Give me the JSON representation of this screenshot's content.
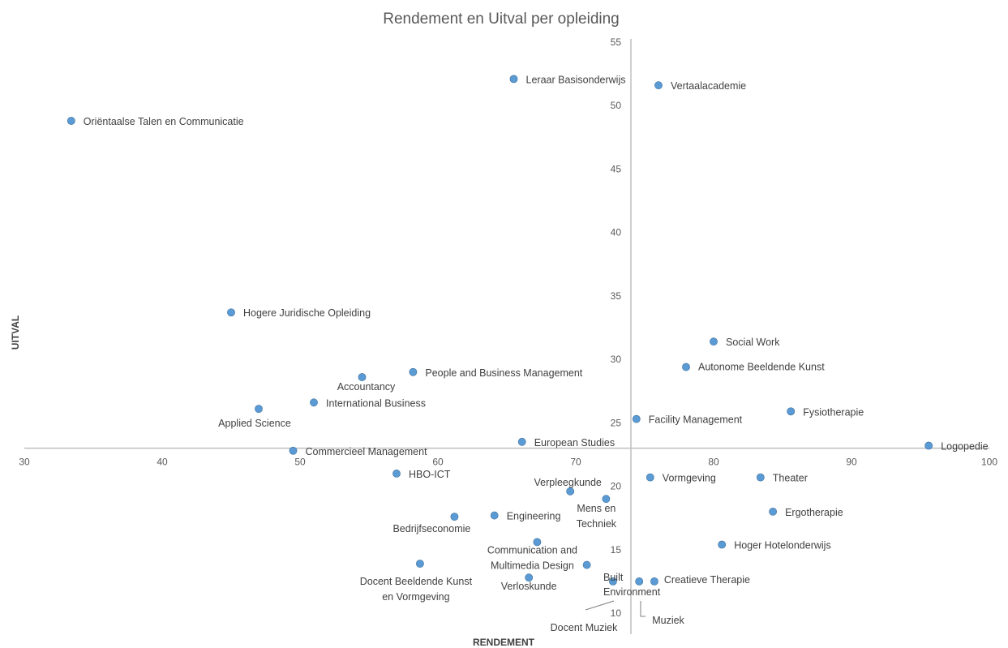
{
  "chart_data": {
    "type": "scatter",
    "title": "Rendement en Uitval per opleiding",
    "xlabel": "RENDEMENT",
    "ylabel": "UITVAL",
    "xlim": [
      30,
      100
    ],
    "ylim": [
      10,
      55
    ],
    "x_ticks": [
      30,
      40,
      50,
      60,
      70,
      80,
      90,
      100
    ],
    "y_ticks": [
      10,
      15,
      20,
      25,
      30,
      35,
      40,
      45,
      50,
      55
    ],
    "x_axis_crosses_y_at": 23,
    "y_axis_crosses_x_at": 74,
    "grid": false,
    "legend": "none",
    "point_color": "#5b9bd5",
    "points": [
      {
        "label": "Oriëntaalse Talen en Communicatie",
        "x": 33.4,
        "y": 48.8
      },
      {
        "label": "Leraar Basisonderwijs",
        "x": 65.5,
        "y": 52.1
      },
      {
        "label": "Vertaalacademie",
        "x": 76.0,
        "y": 51.6
      },
      {
        "label": "Hogere Juridische Opleiding",
        "x": 45.0,
        "y": 33.7
      },
      {
        "label": "Social Work",
        "x": 80.0,
        "y": 31.4
      },
      {
        "label": "Autonome Beeldende Kunst",
        "x": 78.0,
        "y": 29.4
      },
      {
        "label": "Accountancy",
        "x": 54.5,
        "y": 28.6
      },
      {
        "label": "People and Business Management",
        "x": 58.2,
        "y": 29.0
      },
      {
        "label": "International Business",
        "x": 51.0,
        "y": 26.6
      },
      {
        "label": "Applied Science",
        "x": 47.0,
        "y": 26.1
      },
      {
        "label": "Fysiotherapie",
        "x": 85.6,
        "y": 25.9
      },
      {
        "label": "Facility Management",
        "x": 74.4,
        "y": 25.3
      },
      {
        "label": "European Studies",
        "x": 66.1,
        "y": 23.5
      },
      {
        "label": "Logopedie",
        "x": 95.6,
        "y": 23.2
      },
      {
        "label": "Commercieel Management",
        "x": 49.5,
        "y": 22.8
      },
      {
        "label": "HBO-ICT",
        "x": 57.0,
        "y": 21.0
      },
      {
        "label": "Vormgeving",
        "x": 75.4,
        "y": 20.7
      },
      {
        "label": "Theater",
        "x": 83.4,
        "y": 20.7
      },
      {
        "label": "Verpleegkunde",
        "x": 69.6,
        "y": 19.6
      },
      {
        "label": "Mens en Techniek",
        "x": 72.2,
        "y": 19.0
      },
      {
        "label": "Ergotherapie",
        "x": 84.3,
        "y": 18.0
      },
      {
        "label": "Bedrijfseconomie",
        "x": 61.2,
        "y": 17.6
      },
      {
        "label": "Engineering",
        "x": 64.1,
        "y": 17.7
      },
      {
        "label": "Communication and Multimedia Design",
        "x": 67.2,
        "y": 15.6
      },
      {
        "label": "Hoger Hotelonderwijs",
        "x": 80.6,
        "y": 15.4
      },
      {
        "label": "Docent Beeldende Kunst en Vormgeving",
        "x": 58.7,
        "y": 13.9
      },
      {
        "label": "Built Environment",
        "x": 70.8,
        "y": 13.8
      },
      {
        "label": "Verloskunde",
        "x": 66.6,
        "y": 12.8
      },
      {
        "label": "Docent Muziek",
        "x": 72.7,
        "y": 12.5
      },
      {
        "label": "Muziek",
        "x": 74.6,
        "y": 12.5
      },
      {
        "label": "Creatieve Therapie",
        "x": 75.7,
        "y": 12.5
      }
    ]
  }
}
